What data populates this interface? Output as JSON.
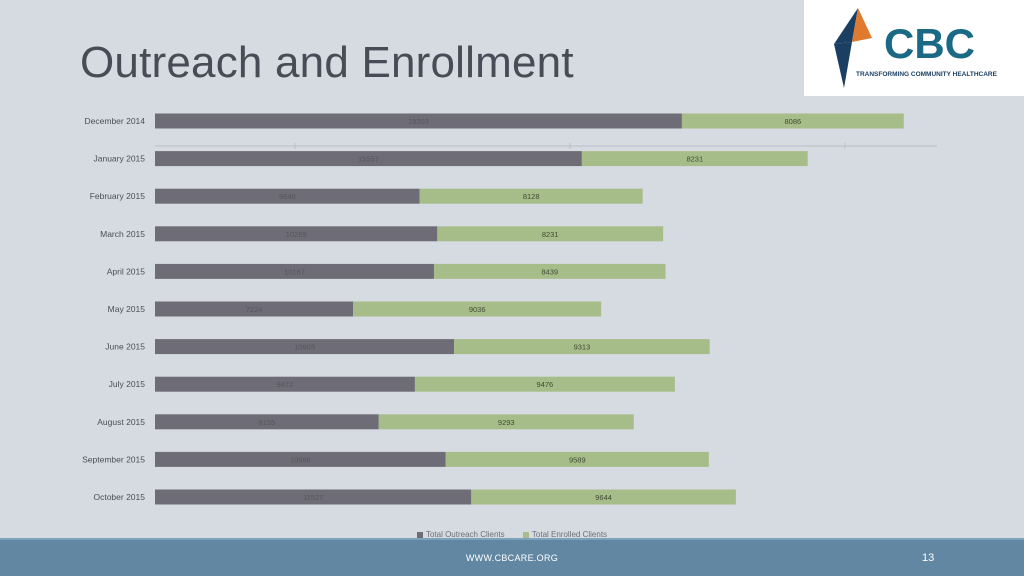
{
  "slide": {
    "title": "Outreach and Enrollment",
    "page_number": "13",
    "footer_url": "WWW.CBCARE.ORG"
  },
  "logo": {
    "text": "CBC",
    "tagline": "TRANSFORMING COMMUNITY HEALTHCARE",
    "colors": {
      "orange": "#e07a2e",
      "navy": "#1b3f63",
      "teal": "#1a6a86"
    }
  },
  "chart_data": {
    "type": "bar",
    "orientation": "horizontal",
    "stacked": true,
    "categories": [
      "December 2014",
      "January 2015",
      "February 2015",
      "March 2015",
      "April 2015",
      "May 2015",
      "June 2015",
      "July 2015",
      "August 2015",
      "September 2015",
      "October 2015"
    ],
    "series": [
      {
        "name": "Total Outreach Clients",
        "color": "#6e6d77",
        "values": [
          19203,
          15557,
          9646,
          10289,
          10167,
          7224,
          10903,
          9472,
          8155,
          10596,
          11527
        ]
      },
      {
        "name": "Total Enrolled Clients",
        "color": "#a7bd89",
        "values": [
          8086,
          8231,
          8128,
          8231,
          8439,
          9036,
          9313,
          9476,
          9293,
          9589,
          9644
        ]
      }
    ],
    "xlim": [
      0,
      28500
    ],
    "grid": true,
    "legend_position": "bottom",
    "data_labels": true
  }
}
